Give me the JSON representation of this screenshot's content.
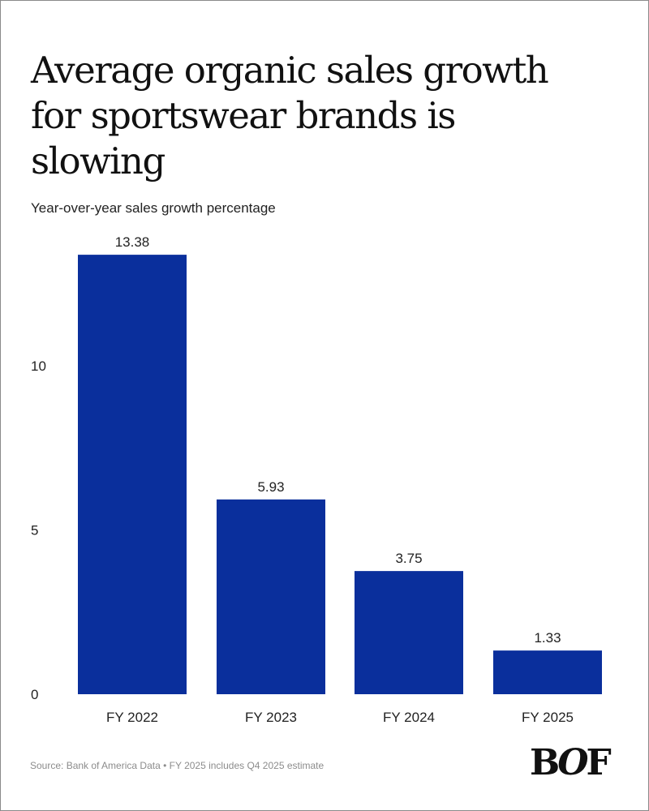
{
  "chart_data": {
    "type": "bar",
    "title": "Average organic sales growth for sportswear brands is slowing",
    "subtitle": "Year-over-year sales growth percentage",
    "categories": [
      "FY 2022",
      "FY 2023",
      "FY 2024",
      "FY 2025"
    ],
    "values": [
      13.38,
      5.93,
      3.75,
      1.33
    ],
    "data_labels": [
      "13.38",
      "5.93",
      "3.75",
      "1.33"
    ],
    "yticks": [
      0,
      5,
      10
    ],
    "ylim": [
      0,
      13.38
    ],
    "grid": false,
    "bar_color": "#0a2f9c"
  },
  "footer": {
    "source": "Source: Bank of America Data • FY 2025 includes Q4 2025 estimate",
    "logo": "BOF"
  }
}
